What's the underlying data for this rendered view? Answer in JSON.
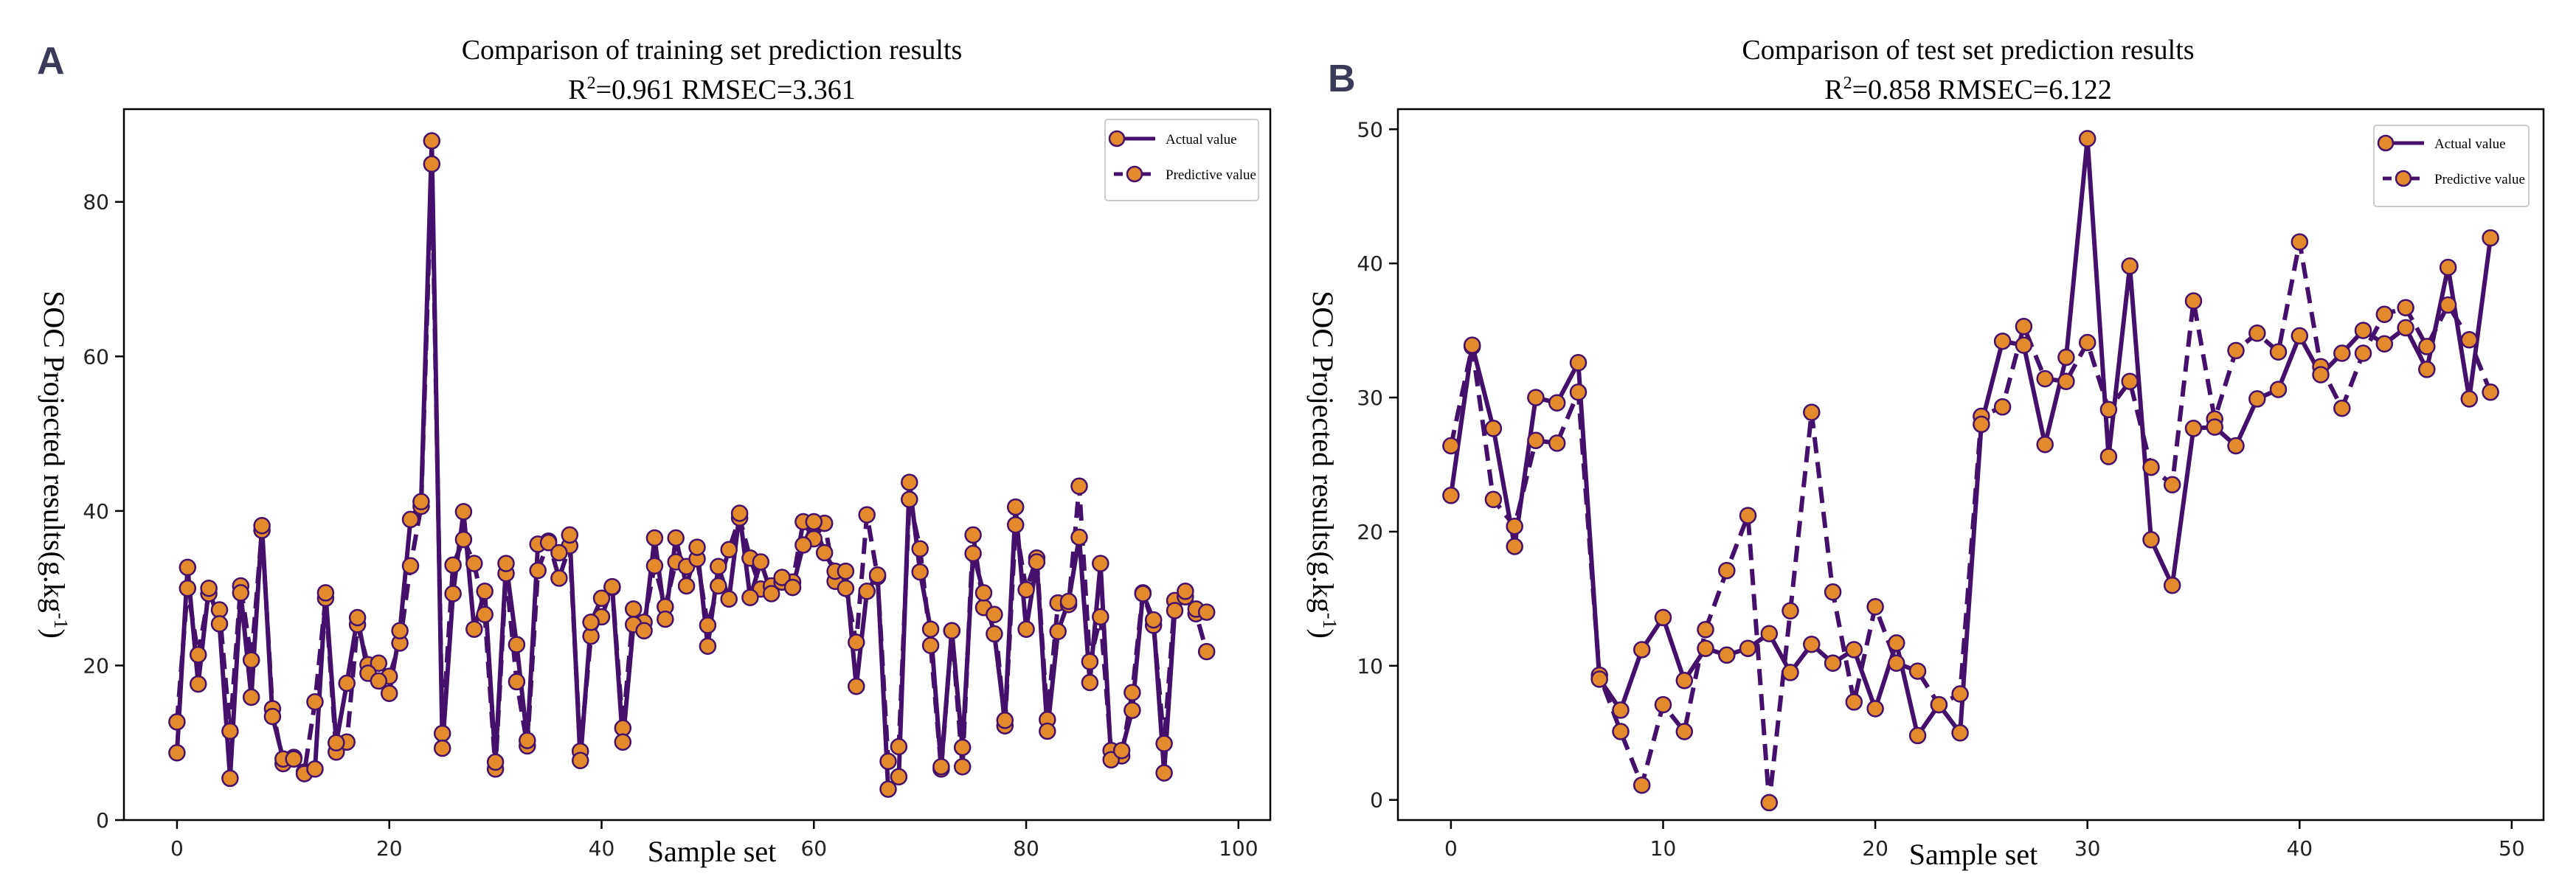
{
  "colors": {
    "line": "#45106b",
    "marker_fill": "#e38b2c",
    "marker_edge": "#45106b",
    "panel_letter": "#3a3a5a"
  },
  "chart_data": [
    {
      "panel": "A",
      "type": "line",
      "title": "Comparison of training set prediction results",
      "subtitle_prefix": "R",
      "subtitle_sup": "2",
      "subtitle_rest": "=0.961 RMSEC=3.361",
      "xlabel": "Sample set",
      "ylabel_main": "SOC Projected results(g.kg",
      "ylabel_sup": "-1",
      "ylabel_tail": ")",
      "xlim": [
        -5,
        103
      ],
      "ylim": [
        0,
        92
      ],
      "xticks": [
        0,
        20,
        40,
        60,
        80,
        100
      ],
      "yticks": [
        0,
        20,
        40,
        60,
        80
      ],
      "legend": [
        "Actual value",
        "Predictive value"
      ],
      "legend_position": "top-right",
      "series": [
        {
          "name": "Actual value",
          "style": "solid",
          "values": [
            8.7,
            32.7,
            17.6,
            30.0,
            25.4,
            5.4,
            29.4,
            15.9,
            38.1,
            13.4,
            7.9,
            7.9,
            6.0,
            6.6,
            29.4,
            10.0,
            17.7,
            26.2,
            19.0,
            18.0,
            16.4,
            24.5,
            38.9,
            41.2,
            87.9,
            9.3,
            29.3,
            39.9,
            24.7,
            29.6,
            7.5,
            33.2,
            22.7,
            10.3,
            35.7,
            35.9,
            34.6,
            36.9,
            7.7,
            25.6,
            28.7,
            30.2,
            10.1,
            25.3,
            24.5,
            36.5,
            26.0,
            36.5,
            30.3,
            35.3,
            22.5,
            32.8,
            28.6,
            39.7,
            28.8,
            33.4,
            29.3,
            31.4,
            30.1,
            35.6,
            38.6,
            34.6,
            32.2,
            32.2,
            17.3,
            29.6,
            31.7,
            4.0,
            5.6,
            43.7,
            32.1,
            24.7,
            6.9,
            24.5,
            9.4,
            34.5,
            29.4,
            24.1,
            12.9,
            40.5,
            24.7,
            33.4,
            11.5,
            24.4,
            28.3,
            36.6,
            17.8,
            33.2,
            7.8,
            9.0,
            14.2,
            29.3,
            25.9,
            6.1,
            27.1,
            29.6,
            27.3,
            26.9
          ]
        },
        {
          "name": "Predictive value",
          "style": "dashed",
          "values": [
            12.7,
            30.0,
            21.4,
            29.3,
            27.2,
            11.5,
            30.3,
            20.7,
            37.5,
            14.4,
            7.3,
            8.1,
            6.2,
            15.3,
            28.7,
            8.8,
            10.1,
            25.3,
            20.1,
            20.3,
            18.6,
            22.9,
            32.9,
            40.6,
            84.9,
            11.2,
            33.0,
            36.3,
            33.2,
            26.6,
            6.6,
            31.9,
            17.9,
            9.6,
            32.3,
            36.1,
            31.3,
            35.5,
            8.9,
            23.8,
            26.3,
            30.1,
            11.9,
            27.3,
            25.6,
            32.9,
            27.6,
            33.4,
            32.8,
            33.8,
            25.2,
            30.3,
            35.0,
            39.1,
            33.9,
            29.9,
            30.3,
            30.8,
            30.8,
            38.6,
            36.4,
            38.4,
            30.9,
            30.0,
            23.0,
            39.5,
            31.5,
            7.6,
            9.5,
            41.5,
            35.1,
            22.6,
            6.6,
            24.5,
            6.9,
            36.9,
            27.5,
            26.6,
            12.2,
            38.2,
            29.8,
            33.9,
            13.0,
            28.1,
            27.9,
            43.2,
            20.5,
            26.3,
            9.0,
            8.3,
            16.5,
            29.4,
            25.2,
            9.9,
            28.4,
            28.9,
            26.7,
            21.8
          ]
        }
      ]
    },
    {
      "panel": "B",
      "type": "line",
      "title": "Comparison of test set prediction results",
      "subtitle_prefix": "R",
      "subtitle_sup": "2",
      "subtitle_rest": "=0.858 RMSEC=6.122",
      "xlabel": "Sample set",
      "ylabel_main": "SOC Projected results(g.kg",
      "ylabel_sup": "-1",
      "ylabel_tail": ")",
      "xlim": [
        -2.5,
        51.5
      ],
      "ylim": [
        -1.5,
        51.5
      ],
      "xticks": [
        0,
        10,
        20,
        30,
        40,
        50
      ],
      "yticks": [
        0,
        10,
        20,
        30,
        40,
        50
      ],
      "legend": [
        "Actual value",
        "Predictive value"
      ],
      "legend_position": "top-right",
      "series": [
        {
          "name": "Actual value",
          "style": "solid",
          "values": [
            22.7,
            33.9,
            27.7,
            18.9,
            30.0,
            29.6,
            32.6,
            9.0,
            6.7,
            11.2,
            13.6,
            8.9,
            11.3,
            10.8,
            11.3,
            12.4,
            9.5,
            11.6,
            10.2,
            11.2,
            6.8,
            11.7,
            4.8,
            7.1,
            5.0,
            28.0,
            34.2,
            33.9,
            26.5,
            33.0,
            49.3,
            25.6,
            39.8,
            19.4,
            16.0,
            27.7,
            27.8,
            26.4,
            29.9,
            30.6,
            34.6,
            31.7,
            33.3,
            35.0,
            34.0,
            35.2,
            32.1,
            39.7,
            29.9,
            41.9
          ]
        },
        {
          "name": "Predictive value",
          "style": "dashed",
          "values": [
            26.4,
            33.8,
            22.4,
            20.4,
            26.8,
            26.6,
            30.4,
            9.3,
            5.1,
            1.1,
            7.1,
            5.1,
            12.7,
            17.1,
            21.2,
            -0.2,
            14.1,
            28.9,
            15.5,
            7.3,
            14.4,
            10.2,
            9.6,
            7.1,
            7.9,
            28.6,
            29.3,
            35.3,
            31.4,
            31.2,
            34.1,
            29.1,
            31.2,
            24.8,
            23.5,
            37.2,
            28.4,
            33.5,
            34.8,
            33.4,
            41.6,
            32.3,
            29.2,
            33.3,
            36.2,
            36.7,
            33.8,
            36.9,
            34.3,
            30.4
          ]
        }
      ]
    }
  ]
}
